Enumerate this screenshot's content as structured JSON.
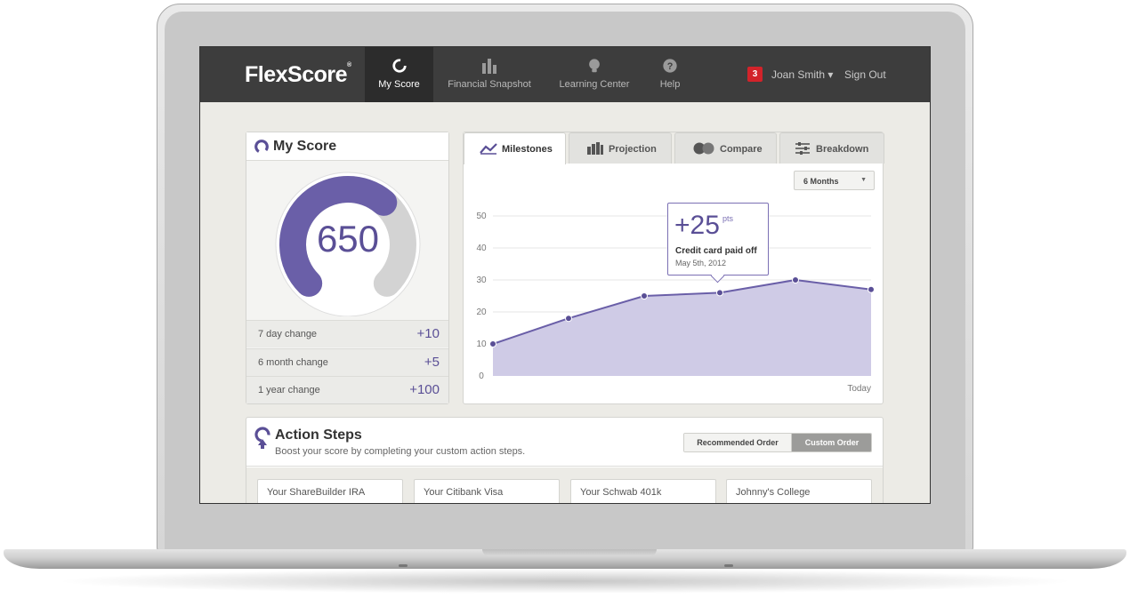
{
  "app": {
    "logo": "FlexScore",
    "logo_mark": "®"
  },
  "nav": {
    "items": [
      {
        "label": "My Score",
        "icon": "score-ring-icon",
        "active": true
      },
      {
        "label": "Financial Snapshot",
        "icon": "bar-chart-icon",
        "active": false
      },
      {
        "label": "Learning Center",
        "icon": "lightbulb-icon",
        "active": false
      },
      {
        "label": "Help",
        "icon": "question-icon",
        "active": false
      }
    ],
    "notifications": "3",
    "user": "Joan Smith ▾",
    "sign_out": "Sign Out"
  },
  "score": {
    "title": "My Score",
    "value": "650",
    "gauge_fraction": 0.65,
    "changes": [
      {
        "label": "7 day change",
        "value": "+10"
      },
      {
        "label": "6 month change",
        "value": "+5"
      },
      {
        "label": "1 year change",
        "value": "+100"
      }
    ]
  },
  "chart_tabs": [
    {
      "label": "Milestones",
      "icon": "trend-line-icon",
      "active": true
    },
    {
      "label": "Projection",
      "icon": "projection-bars-icon",
      "active": false
    },
    {
      "label": "Compare",
      "icon": "compare-circles-icon",
      "active": false
    },
    {
      "label": "Breakdown",
      "icon": "sliders-icon",
      "active": false
    }
  ],
  "range_select": {
    "value": "6 Months"
  },
  "tooltip": {
    "points": "+25",
    "unit": "pts",
    "title": "Credit card paid off",
    "date": "May 5th, 2012"
  },
  "chart_data": {
    "type": "area",
    "x": [
      0,
      1,
      2,
      3,
      4,
      5
    ],
    "y": [
      10,
      18,
      25,
      26,
      30,
      27
    ],
    "ylim": [
      0,
      50
    ],
    "yticks": [
      0,
      10,
      20,
      30,
      40,
      50
    ],
    "x_end_label": "Today",
    "grid": true,
    "colors": {
      "line": "#6a5fa8",
      "fill": "#cfcbe6"
    }
  },
  "action_steps": {
    "title": "Action Steps",
    "subtitle": "Boost your score by completing your custom action steps.",
    "order_recommended": "Recommended Order",
    "order_custom": "Custom Order",
    "accounts": [
      "Your ShareBuilder IRA",
      "Your Citibank Visa",
      "Your Schwab 401k",
      "Johnny's College"
    ]
  },
  "colors": {
    "accent": "#5a4f96",
    "nav_bg": "#3d3d3d",
    "badge": "#d2232a"
  }
}
